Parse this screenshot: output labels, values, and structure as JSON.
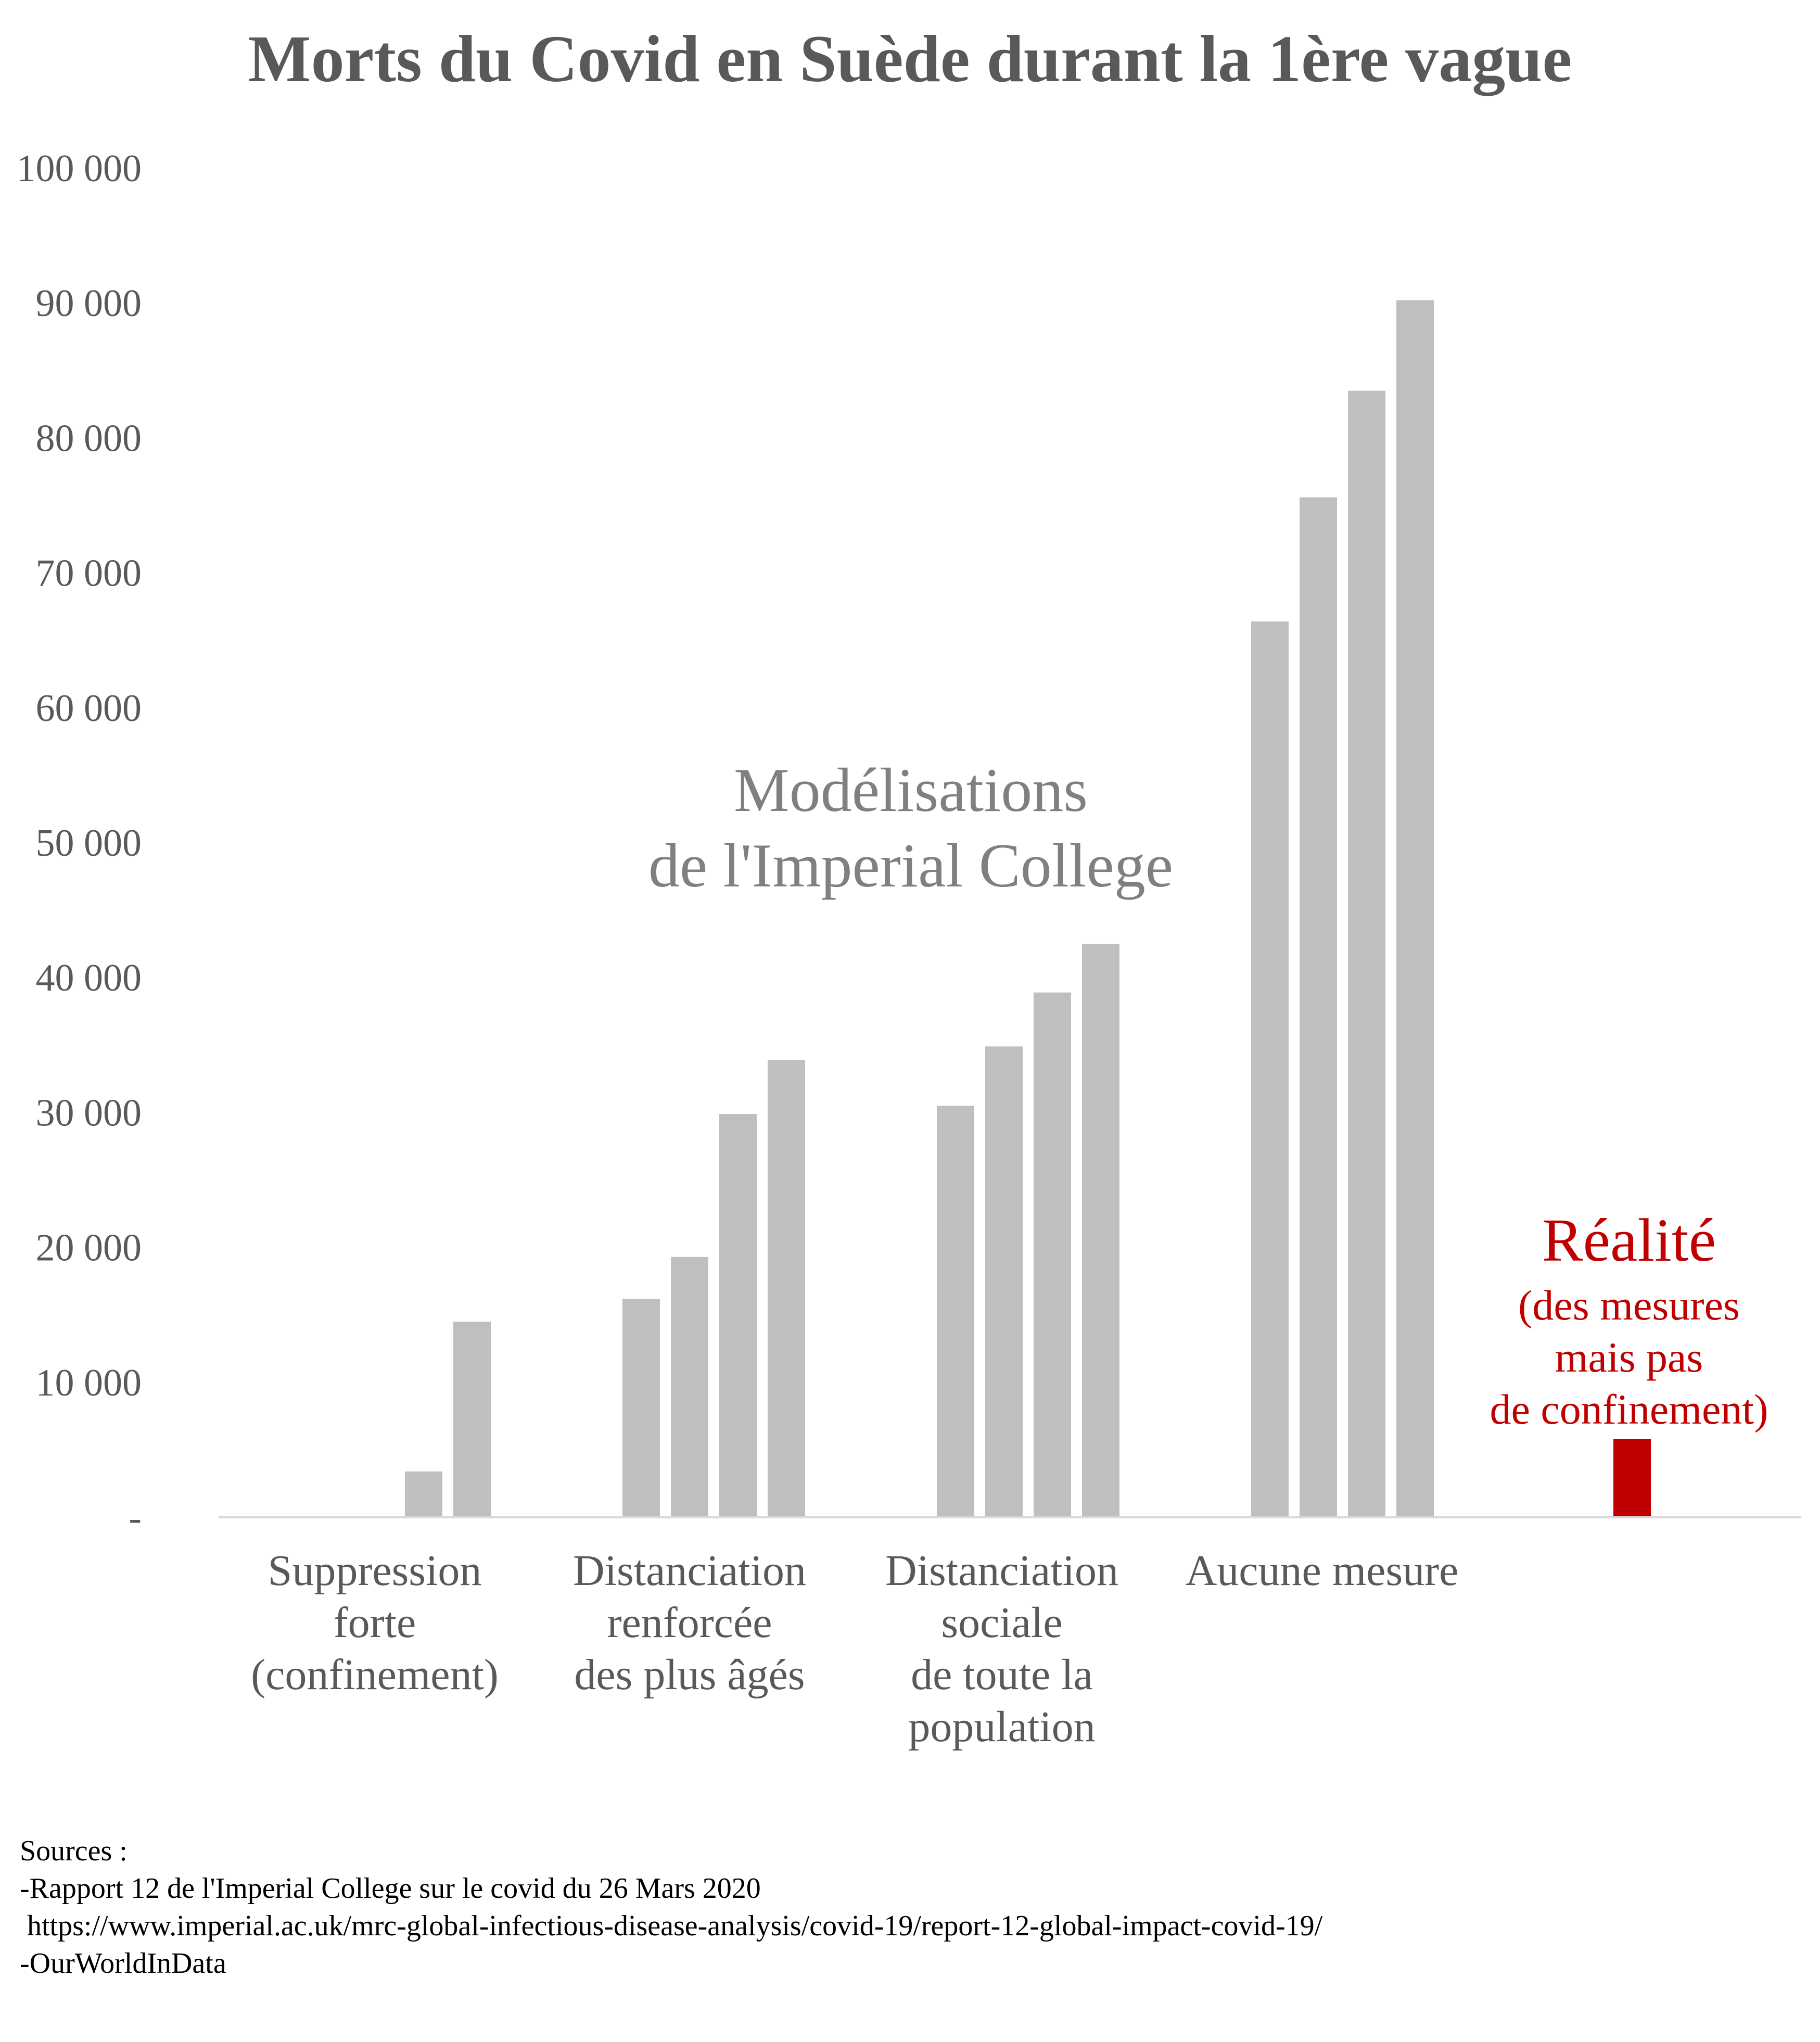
{
  "colors": {
    "model": "#bfbfbf",
    "reality": "#c00000",
    "text": "#595959",
    "axis": "#d9d9d9"
  },
  "chart_data": {
    "type": "bar",
    "title": "Morts du Covid en Suède durant la 1ère vague",
    "ylim": [
      0,
      100000
    ],
    "yticks": [
      {
        "value": 0,
        "label": "-"
      },
      {
        "value": 10000,
        "label": "10 000"
      },
      {
        "value": 20000,
        "label": "20 000"
      },
      {
        "value": 30000,
        "label": "30 000"
      },
      {
        "value": 40000,
        "label": "40 000"
      },
      {
        "value": 50000,
        "label": "50 000"
      },
      {
        "value": 60000,
        "label": "60 000"
      },
      {
        "value": 70000,
        "label": "70 000"
      },
      {
        "value": 80000,
        "label": "80 000"
      },
      {
        "value": 90000,
        "label": "90 000"
      },
      {
        "value": 100000,
        "label": "100 000"
      }
    ],
    "grid": false,
    "groups": [
      {
        "label": "Suppression\nforte\n(confinement)",
        "values": [
          0,
          0,
          3400,
          14500
        ],
        "series": "model"
      },
      {
        "label": "Distanciation\nrenforcée\ndes plus âgés",
        "values": [
          16200,
          19300,
          29900,
          33900
        ],
        "series": "model"
      },
      {
        "label": "Distanciation\nsociale\nde toute la\npopulation",
        "values": [
          30500,
          34900,
          38900,
          42500
        ],
        "series": "model"
      },
      {
        "label": "Aucune mesure",
        "values": [
          66400,
          75600,
          83500,
          90200
        ],
        "series": "model"
      },
      {
        "label": "",
        "values": [
          5800
        ],
        "series": "reality"
      }
    ],
    "annotations": {
      "model": "Modélisations\nde l'Imperial College",
      "reality_title": "Réalité",
      "reality_sub": "(des mesures\nmais pas\nde confinement)"
    }
  },
  "sources": [
    "Sources :",
    "-Rapport 12 de l'Imperial College sur le covid du 26 Mars 2020",
    " https://www.imperial.ac.uk/mrc-global-infectious-disease-analysis/covid-19/report-12-global-impact-covid-19/",
    "-OurWorldInData"
  ]
}
